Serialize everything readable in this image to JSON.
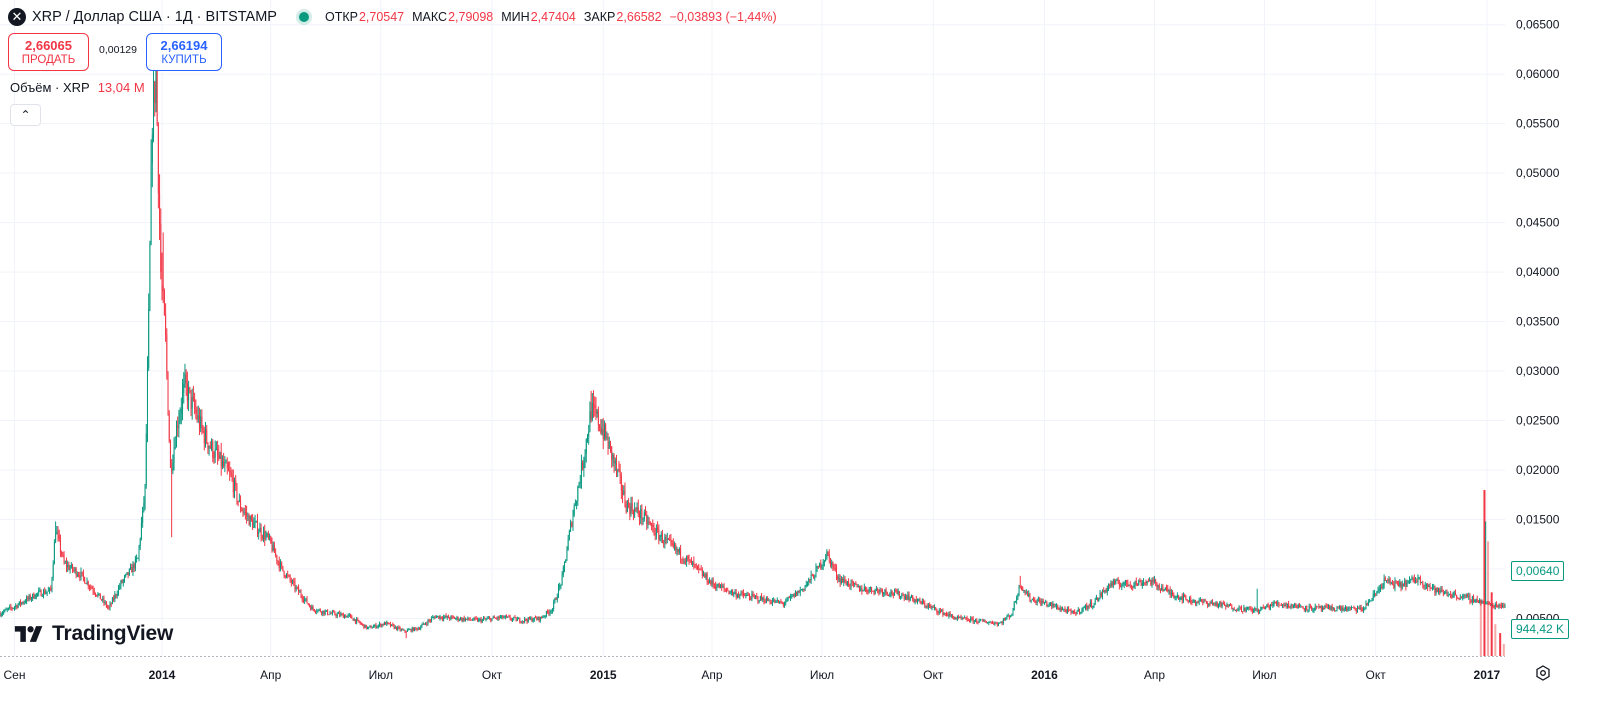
{
  "header": {
    "symbol_icon": "xrp-logo-icon",
    "title": "XRP / Доллар США · 1Д · BITSTAMP",
    "ohlc": {
      "open_label": "ОТКР",
      "open_value": "2,70547",
      "high_label": "МАКС",
      "high_value": "2,79098",
      "low_label": "МИН",
      "low_value": "2,47404",
      "close_label": "ЗАКР",
      "close_value": "2,66582",
      "change": "−0,03893 (−1,44%)"
    }
  },
  "trade": {
    "sell_price": "2,66065",
    "sell_label": "ПРОДАТЬ",
    "spread": "0,00129",
    "buy_price": "2,66194",
    "buy_label": "КУПИТЬ"
  },
  "volume_legend": {
    "label": "Объём · XRP",
    "value": "13,04 M"
  },
  "collapse_glyph": "⌃",
  "logo_text": "TradingView",
  "price_tags": {
    "last_price": "0,00640",
    "last_volume": "944,42 K"
  },
  "colors": {
    "up": "#089981",
    "down": "#f23645",
    "grid": "#f0f3fa",
    "text": "#131722",
    "buy": "#2962ff"
  },
  "chart_data": {
    "type": "candlestick",
    "y_scale": "linear",
    "ylim": [
      0.0012,
      0.0675
    ],
    "y_ticks": [
      {
        "value": 0.065,
        "label": "0,06500"
      },
      {
        "value": 0.06,
        "label": "0,06000"
      },
      {
        "value": 0.055,
        "label": "0,05500"
      },
      {
        "value": 0.05,
        "label": "0,05000"
      },
      {
        "value": 0.045,
        "label": "0,04500"
      },
      {
        "value": 0.04,
        "label": "0,04000"
      },
      {
        "value": 0.035,
        "label": "0,03500"
      },
      {
        "value": 0.03,
        "label": "0,03000"
      },
      {
        "value": 0.025,
        "label": "0,02500"
      },
      {
        "value": 0.02,
        "label": "0,02000"
      },
      {
        "value": 0.015,
        "label": "0,01500"
      },
      {
        "value": 0.01,
        "label": "0,01000"
      },
      {
        "value": 0.005,
        "label": "0,00500"
      }
    ],
    "x_range": [
      "2013-08-20",
      "2017-01-16"
    ],
    "x_ticks": [
      {
        "date": "2013-09-01",
        "label": "Сен",
        "bold": false
      },
      {
        "date": "2014-01-01",
        "label": "2014",
        "bold": true
      },
      {
        "date": "2014-04-01",
        "label": "Апр",
        "bold": false
      },
      {
        "date": "2014-07-01",
        "label": "Июл",
        "bold": false
      },
      {
        "date": "2014-10-01",
        "label": "Окт",
        "bold": false
      },
      {
        "date": "2015-01-01",
        "label": "2015",
        "bold": true
      },
      {
        "date": "2015-04-01",
        "label": "Апр",
        "bold": false
      },
      {
        "date": "2015-07-01",
        "label": "Июл",
        "bold": false
      },
      {
        "date": "2015-10-01",
        "label": "Окт",
        "bold": false
      },
      {
        "date": "2016-01-01",
        "label": "2016",
        "bold": true
      },
      {
        "date": "2016-04-01",
        "label": "Апр",
        "bold": false
      },
      {
        "date": "2016-07-01",
        "label": "Июл",
        "bold": false
      },
      {
        "date": "2016-10-01",
        "label": "Окт",
        "bold": false
      },
      {
        "date": "2017-01-01",
        "label": "2017",
        "bold": true
      }
    ],
    "grid": true,
    "close_series": [
      [
        "2013-08-20",
        0.0055
      ],
      [
        "2013-09-01",
        0.0062
      ],
      [
        "2013-09-20",
        0.0075
      ],
      [
        "2013-10-01",
        0.0078
      ],
      [
        "2013-10-05",
        0.014
      ],
      [
        "2013-10-12",
        0.0105
      ],
      [
        "2013-10-25",
        0.0095
      ],
      [
        "2013-11-08",
        0.0075
      ],
      [
        "2013-11-18",
        0.006
      ],
      [
        "2013-11-28",
        0.0085
      ],
      [
        "2013-12-06",
        0.0098
      ],
      [
        "2013-12-12",
        0.011
      ],
      [
        "2013-12-18",
        0.018
      ],
      [
        "2013-12-21",
        0.035
      ],
      [
        "2013-12-24",
        0.056
      ],
      [
        "2013-12-27",
        0.06
      ],
      [
        "2013-12-31",
        0.04
      ],
      [
        "2014-01-04",
        0.033
      ],
      [
        "2014-01-08",
        0.02
      ],
      [
        "2014-01-14",
        0.025
      ],
      [
        "2014-01-20",
        0.0285
      ],
      [
        "2014-01-28",
        0.026
      ],
      [
        "2014-02-05",
        0.0235
      ],
      [
        "2014-02-12",
        0.022
      ],
      [
        "2014-02-20",
        0.0205
      ],
      [
        "2014-02-28",
        0.019
      ],
      [
        "2014-03-06",
        0.0165
      ],
      [
        "2014-03-14",
        0.015
      ],
      [
        "2014-03-22",
        0.014
      ],
      [
        "2014-03-30",
        0.013
      ],
      [
        "2014-04-10",
        0.01
      ],
      [
        "2014-04-22",
        0.008
      ],
      [
        "2014-05-05",
        0.006
      ],
      [
        "2014-05-20",
        0.0055
      ],
      [
        "2014-06-05",
        0.0052
      ],
      [
        "2014-06-20",
        0.004
      ],
      [
        "2014-07-05",
        0.0045
      ],
      [
        "2014-07-20",
        0.0037
      ],
      [
        "2014-08-01",
        0.004
      ],
      [
        "2014-08-15",
        0.0052
      ],
      [
        "2014-09-01",
        0.005
      ],
      [
        "2014-09-20",
        0.0048
      ],
      [
        "2014-10-10",
        0.0051
      ],
      [
        "2014-10-25",
        0.0048
      ],
      [
        "2014-11-10",
        0.005
      ],
      [
        "2014-11-20",
        0.006
      ],
      [
        "2014-11-28",
        0.009
      ],
      [
        "2014-12-06",
        0.015
      ],
      [
        "2014-12-14",
        0.02
      ],
      [
        "2014-12-22",
        0.026
      ],
      [
        "2014-12-28",
        0.025
      ],
      [
        "2015-01-04",
        0.023
      ],
      [
        "2015-01-12",
        0.02
      ],
      [
        "2015-01-20",
        0.0165
      ],
      [
        "2015-02-01",
        0.0155
      ],
      [
        "2015-02-15",
        0.0135
      ],
      [
        "2015-03-01",
        0.012
      ],
      [
        "2015-03-15",
        0.0105
      ],
      [
        "2015-04-01",
        0.0085
      ],
      [
        "2015-04-20",
        0.0075
      ],
      [
        "2015-05-10",
        0.007
      ],
      [
        "2015-05-30",
        0.0065
      ],
      [
        "2015-06-15",
        0.008
      ],
      [
        "2015-06-25",
        0.0095
      ],
      [
        "2015-07-05",
        0.0115
      ],
      [
        "2015-07-15",
        0.009
      ],
      [
        "2015-08-01",
        0.008
      ],
      [
        "2015-08-20",
        0.0078
      ],
      [
        "2015-09-10",
        0.0072
      ],
      [
        "2015-10-01",
        0.006
      ],
      [
        "2015-10-20",
        0.005
      ],
      [
        "2015-11-10",
        0.0047
      ],
      [
        "2015-11-25",
        0.0045
      ],
      [
        "2015-12-05",
        0.0055
      ],
      [
        "2015-12-12",
        0.0085
      ],
      [
        "2015-12-20",
        0.007
      ],
      [
        "2016-01-10",
        0.0062
      ],
      [
        "2016-01-25",
        0.0055
      ],
      [
        "2016-02-10",
        0.0065
      ],
      [
        "2016-02-25",
        0.0085
      ],
      [
        "2016-03-15",
        0.0085
      ],
      [
        "2016-03-28",
        0.0088
      ],
      [
        "2016-04-15",
        0.0075
      ],
      [
        "2016-05-01",
        0.0068
      ],
      [
        "2016-05-20",
        0.0065
      ],
      [
        "2016-06-10",
        0.006
      ],
      [
        "2016-06-25",
        0.0058
      ],
      [
        "2016-07-10",
        0.0065
      ],
      [
        "2016-07-25",
        0.0063
      ],
      [
        "2016-08-10",
        0.006
      ],
      [
        "2016-09-01",
        0.006
      ],
      [
        "2016-09-20",
        0.0059
      ],
      [
        "2016-10-01",
        0.0075
      ],
      [
        "2016-10-08",
        0.0088
      ],
      [
        "2016-10-20",
        0.0083
      ],
      [
        "2016-11-05",
        0.009
      ],
      [
        "2016-11-20",
        0.0078
      ],
      [
        "2016-12-10",
        0.0072
      ],
      [
        "2016-12-25",
        0.0068
      ],
      [
        "2017-01-05",
        0.0063
      ],
      [
        "2017-01-16",
        0.0064
      ]
    ],
    "high_spikes": [
      [
        "2013-10-05",
        0.0148
      ],
      [
        "2013-12-27",
        0.0612
      ],
      [
        "2014-01-02",
        0.044
      ],
      [
        "2014-01-18",
        0.0292
      ],
      [
        "2014-12-22",
        0.028
      ],
      [
        "2015-07-05",
        0.012
      ],
      [
        "2015-12-12",
        0.0093
      ],
      [
        "2016-06-25",
        0.008
      ],
      [
        "2016-12-31",
        0.0148
      ]
    ],
    "low_spikes": [
      [
        "2014-01-09",
        0.0132
      ],
      [
        "2014-07-22",
        0.003
      ]
    ],
    "volume": {
      "visible_max": 13040000,
      "last": 944420,
      "note_bars": [
        [
          "2016-12-27",
          4500000
        ],
        [
          "2016-12-30",
          13040000
        ],
        [
          "2017-01-02",
          9000000
        ],
        [
          "2017-01-05",
          5000000
        ],
        [
          "2017-01-08",
          2500000
        ],
        [
          "2017-01-12",
          1800000
        ],
        [
          "2017-01-15",
          944420
        ]
      ]
    }
  }
}
